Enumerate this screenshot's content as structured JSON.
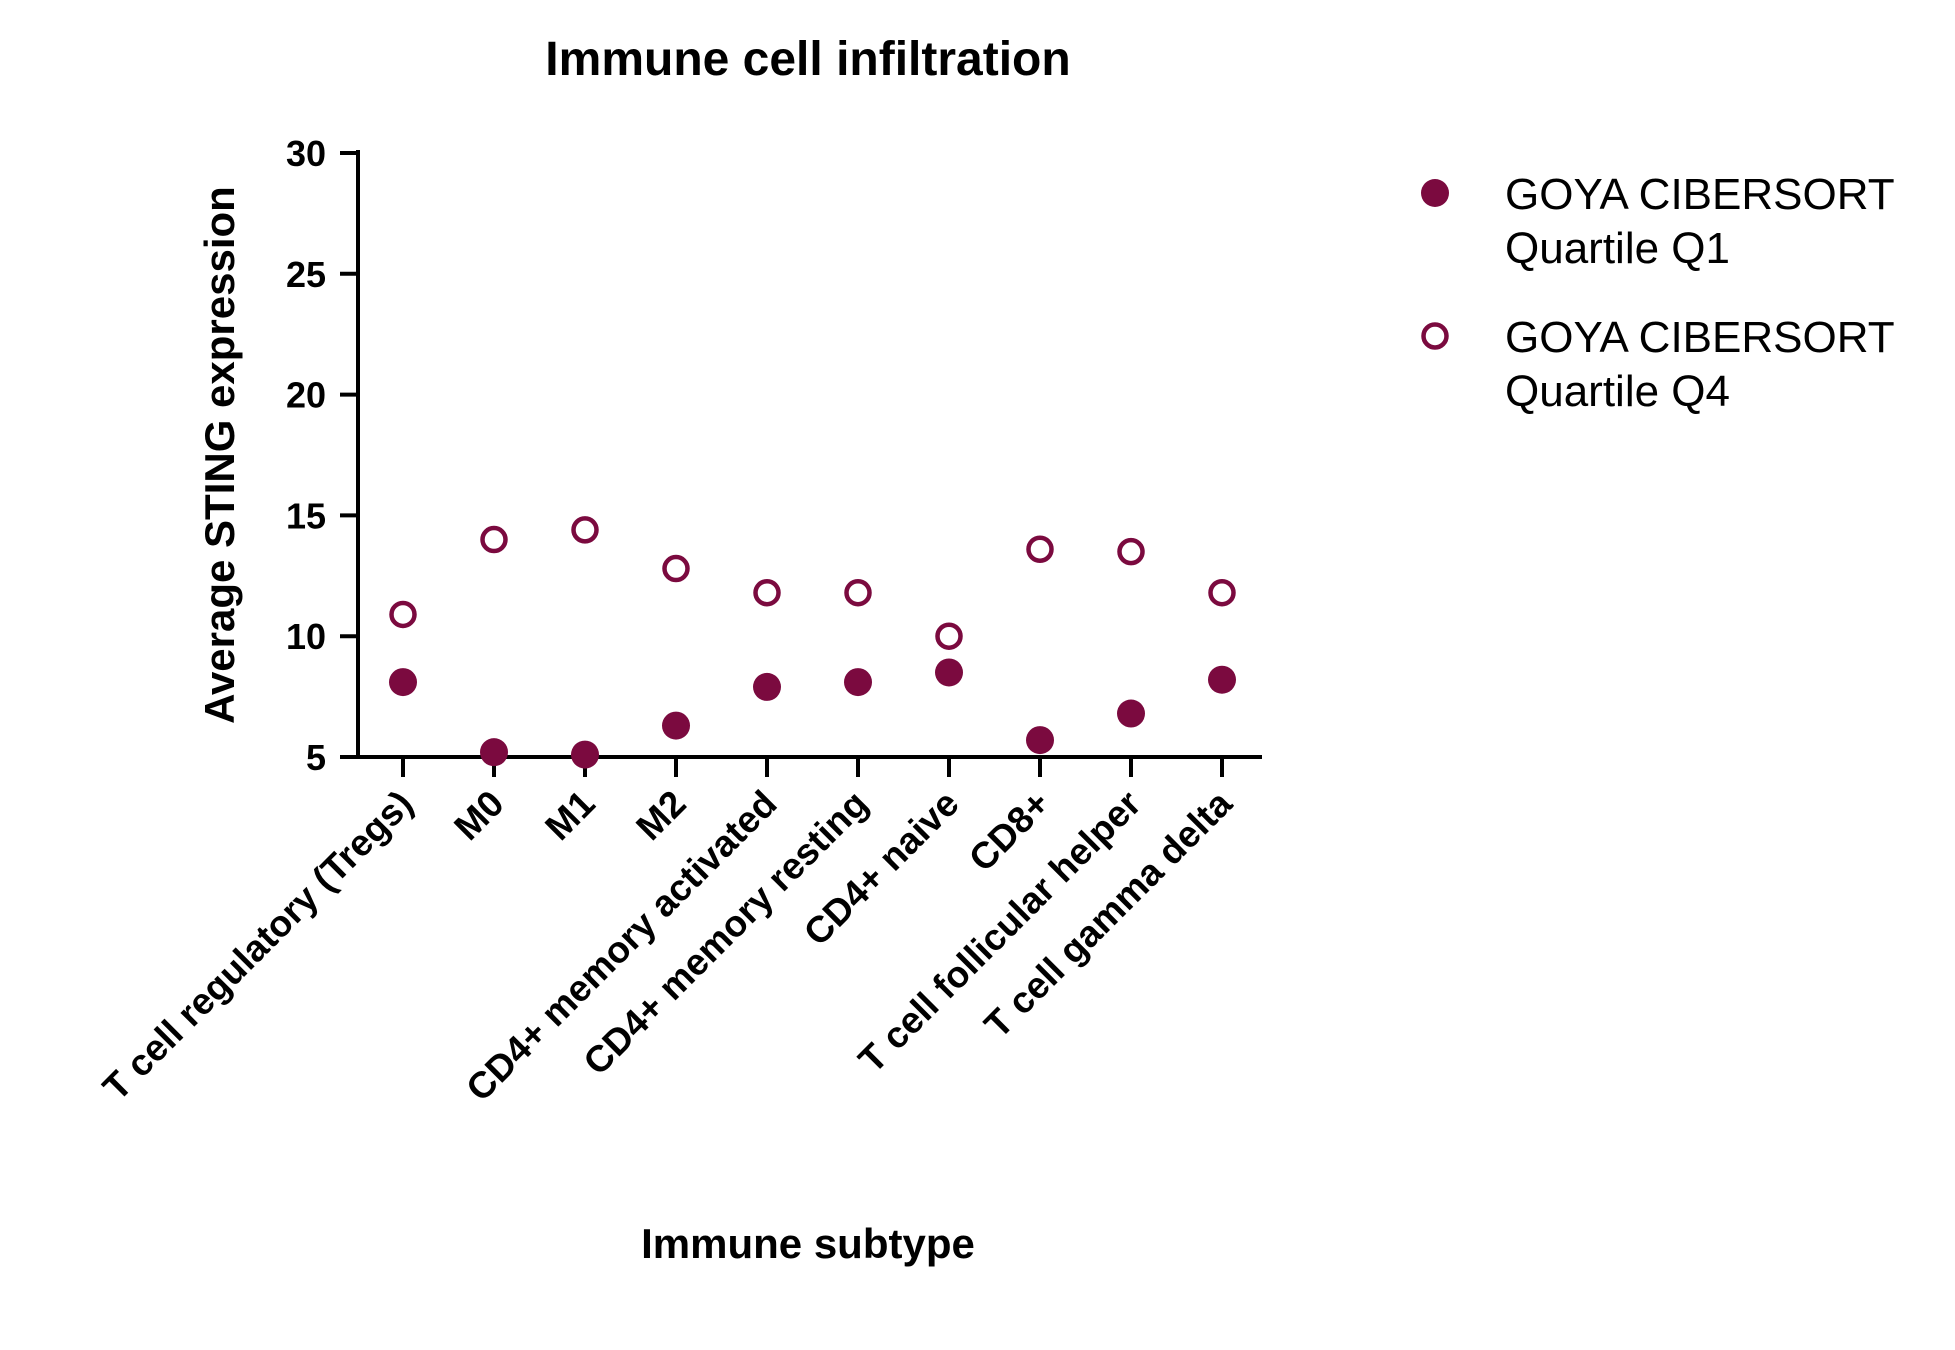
{
  "chart_data": {
    "type": "scatter",
    "title": "Immune cell infiltration",
    "xlabel": "Immune subtype",
    "ylabel": "Average STING expression",
    "ylim": [
      5,
      30
    ],
    "yticks": [
      5,
      10,
      15,
      20,
      25,
      30
    ],
    "ytick_labels": [
      "5",
      "10",
      "15",
      "20",
      "25",
      "30"
    ],
    "categories": [
      "T cell regulatory (Tregs)",
      "M0",
      "M1",
      "M2",
      "CD4+ memory activated",
      "CD4+ memory resting",
      "CD4+ naive",
      "CD8+",
      "T cell follicular helper",
      "T cell gamma delta"
    ],
    "series": [
      {
        "name": "GOYA CIBERSORT Quartile Q1",
        "legend_lines": [
          "GOYA CIBERSORT",
          "Quartile Q1"
        ],
        "marker": "filled-circle",
        "values": [
          8.1,
          5.2,
          5.1,
          6.3,
          7.9,
          8.1,
          8.5,
          5.7,
          6.8,
          8.2
        ]
      },
      {
        "name": "GOYA CIBERSORT Quartile Q4",
        "legend_lines": [
          "GOYA CIBERSORT",
          "Quartile Q4"
        ],
        "marker": "open-circle",
        "values": [
          10.9,
          14.0,
          14.4,
          12.8,
          11.8,
          11.8,
          10.0,
          13.6,
          13.5,
          11.8
        ]
      }
    ],
    "grid": false,
    "legend_position": "top-right",
    "colors": {
      "marker": "#7B0A3F",
      "axis": "#000000"
    }
  }
}
